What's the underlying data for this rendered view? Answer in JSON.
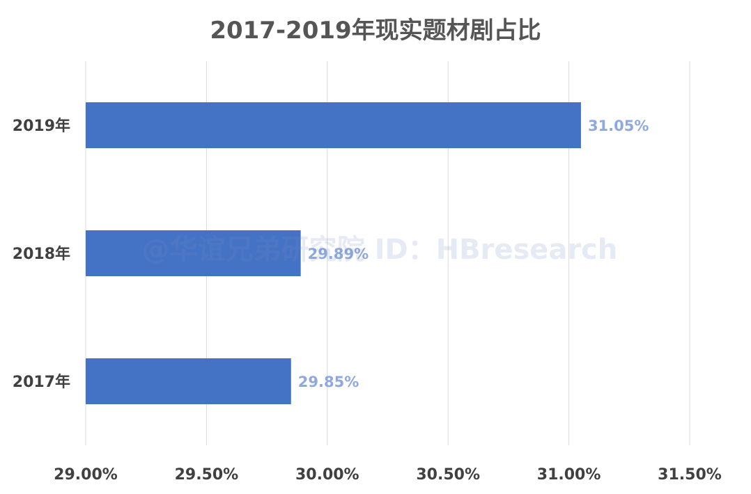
{
  "chart_data": {
    "type": "bar",
    "orientation": "horizontal",
    "title": "2017-2019年现实题材剧占比",
    "categories": [
      "2019年",
      "2018年",
      "2017年"
    ],
    "values": [
      31.05,
      29.89,
      29.85
    ],
    "data_labels": [
      "31.05%",
      "29.89%",
      "29.85%"
    ],
    "xlim": [
      29.0,
      31.5
    ],
    "xticks": [
      29.0,
      29.5,
      30.0,
      30.5,
      31.0,
      31.5
    ],
    "xtick_labels": [
      "29.00%",
      "29.50%",
      "30.00%",
      "30.50%",
      "31.00%",
      "31.50%"
    ],
    "xlabel": "",
    "ylabel": "",
    "grid": "vertical",
    "legend": "none",
    "bar_color": "#4472c4",
    "label_color": "#8ea9db",
    "grid_color": "#d9d9d9"
  },
  "watermark": "@华谊兄弟研究院 ID：HBresearch"
}
